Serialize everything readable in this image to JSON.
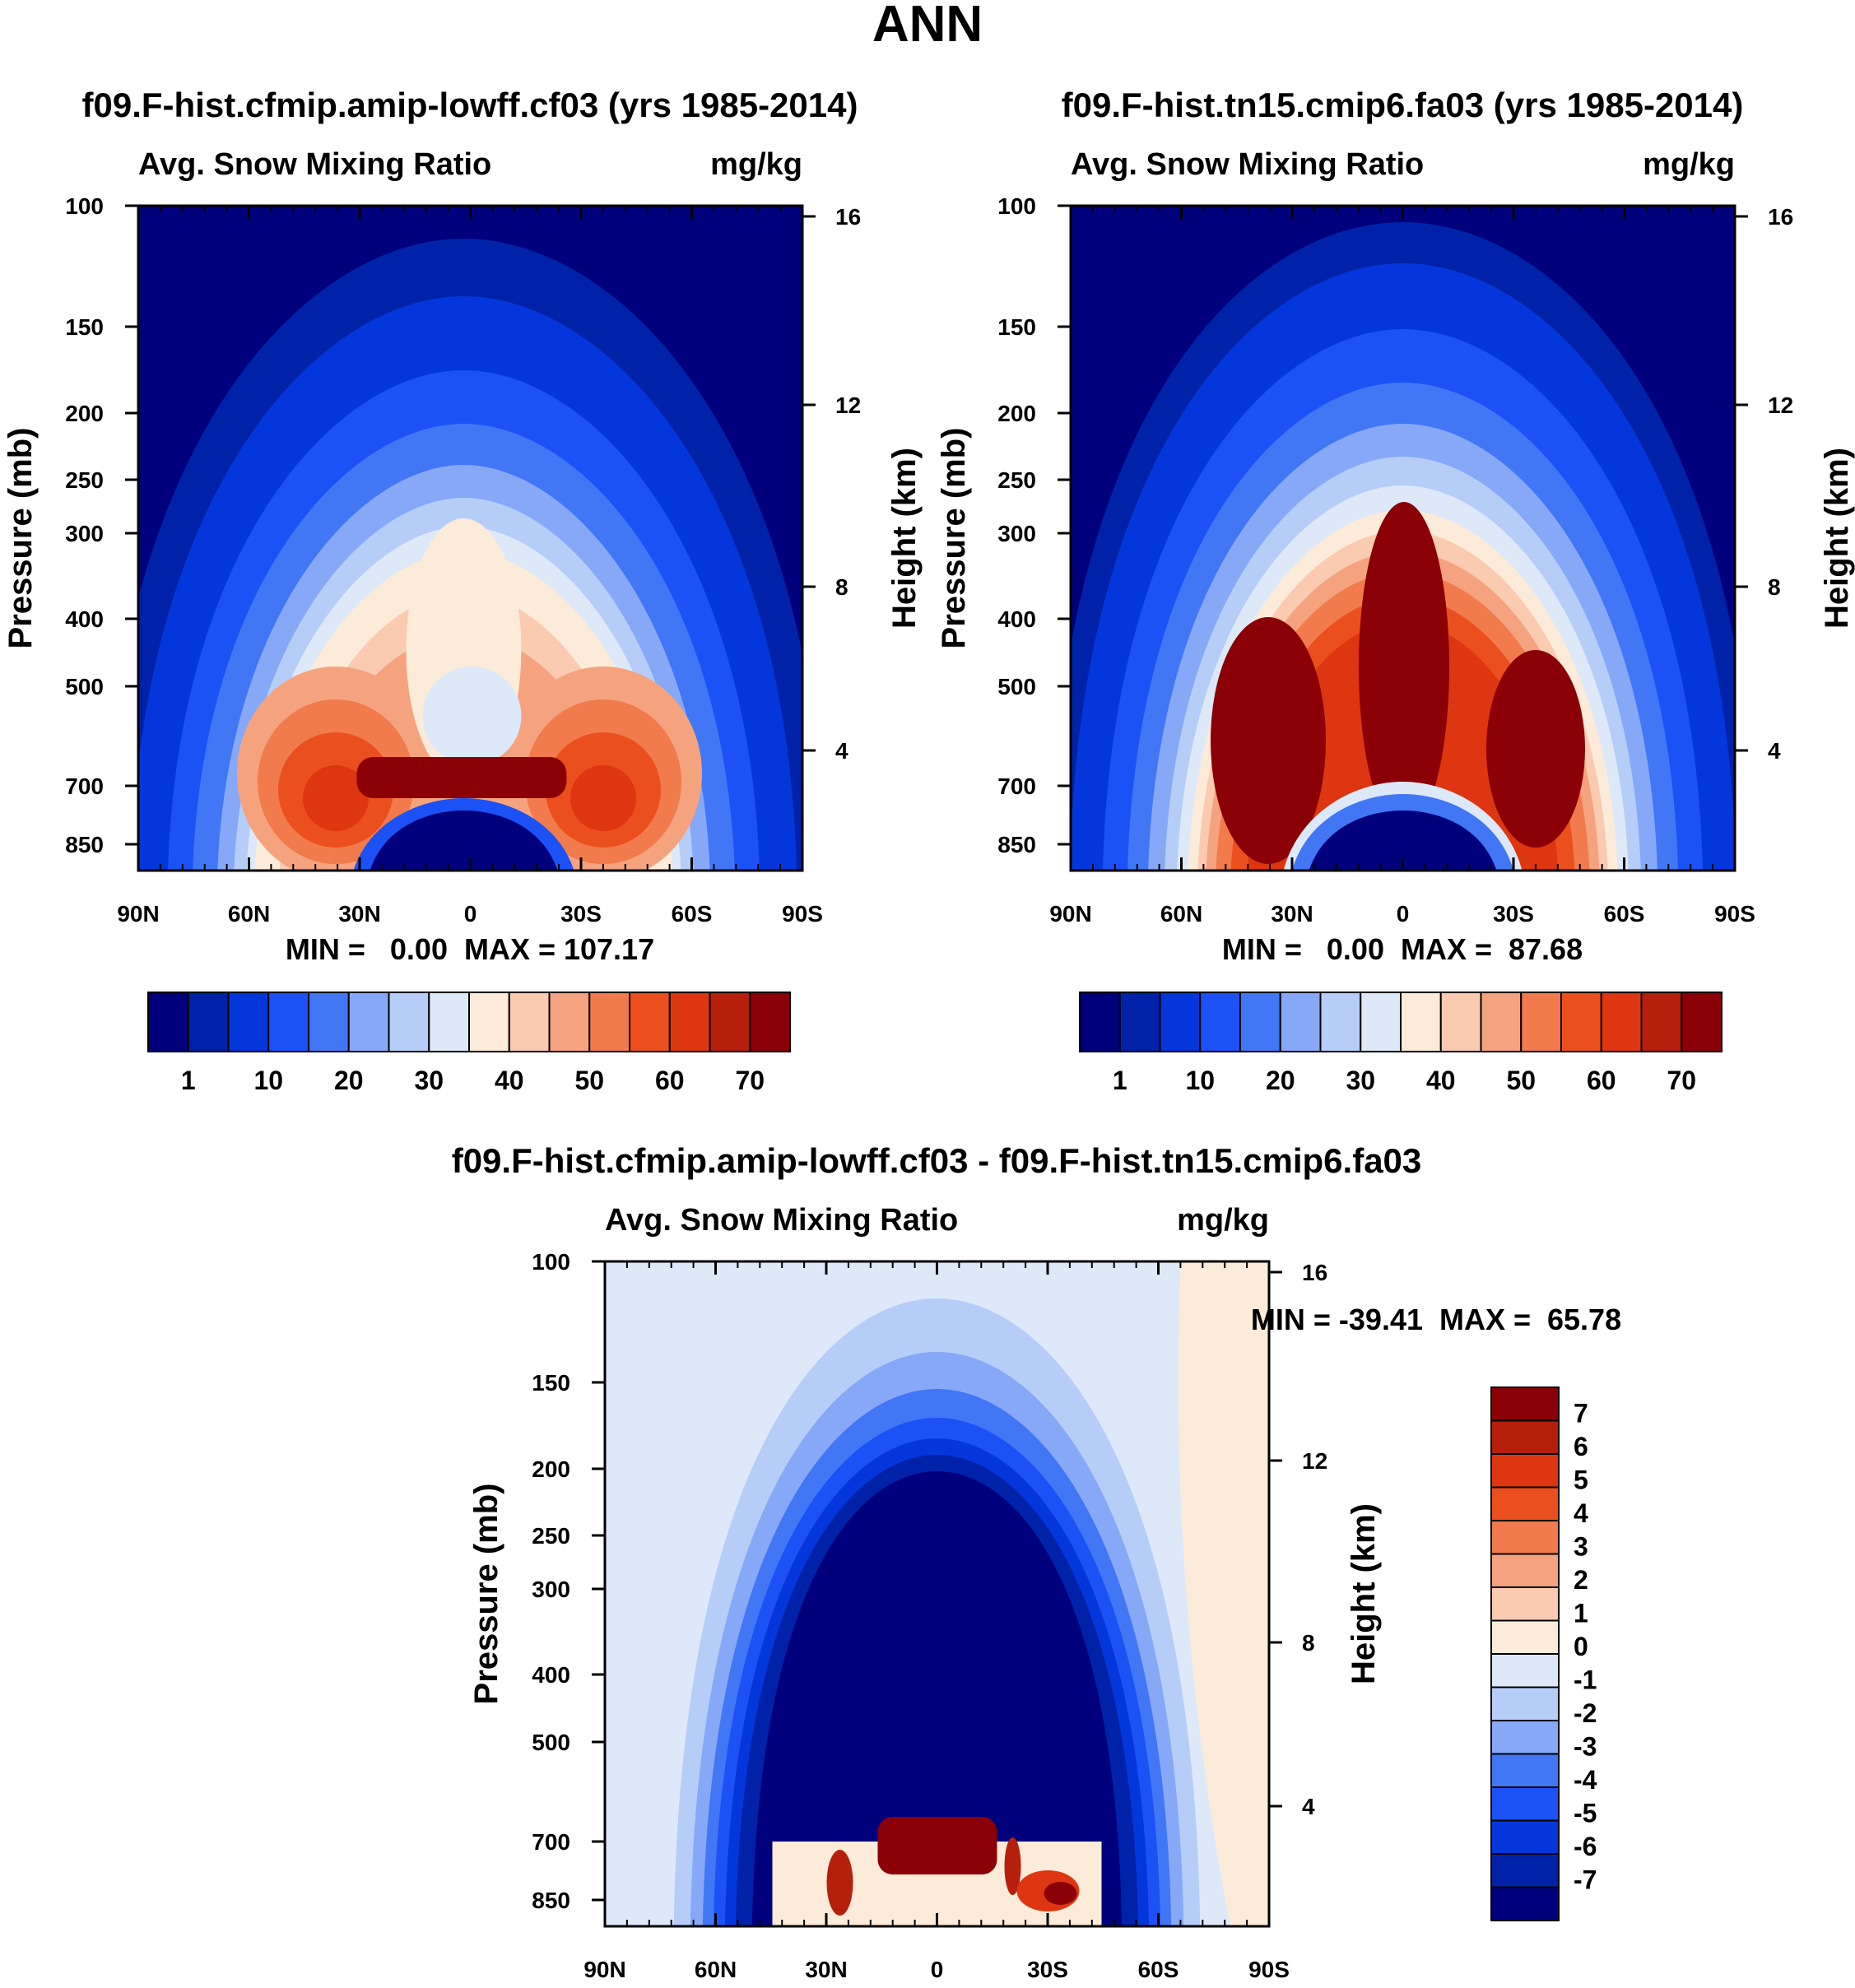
{
  "page": {
    "title": "ANN"
  },
  "colors": {
    "main_scale": [
      "#00007d",
      "#0022a8",
      "#0437db",
      "#1c52f5",
      "#4177f5",
      "#86a8f7",
      "#b6cdf8",
      "#dde9f9",
      "#fdebd9",
      "#facab1",
      "#f5a37f",
      "#f17b4c",
      "#ec4f1e",
      "#de3610",
      "#b51f0b",
      "#8a0006"
    ],
    "diff_scale": [
      "#00007d",
      "#0022a8",
      "#0437db",
      "#1c52f5",
      "#4177f5",
      "#86a8f7",
      "#b6cdf8",
      "#dde9f9",
      "#fdebd9",
      "#facab1",
      "#f5a37f",
      "#f17b4c",
      "#ec4f1e",
      "#de3610",
      "#b51f0b",
      "#8a0006"
    ]
  },
  "chart_data": [
    {
      "type": "contour",
      "title": "f09.F-hist.cfmip.amip-lowff.cf03 (yrs 1985-2014)",
      "left_label": "Avg. Snow Mixing Ratio",
      "units": "mg/kg",
      "ylabel": "Pressure (mb)",
      "ylabel_right": "Height (km)",
      "x_ticks": [
        "90N",
        "60N",
        "30N",
        "0",
        "30S",
        "60S",
        "90S"
      ],
      "y_ticks": [
        "100",
        "150",
        "200",
        "250",
        "300",
        "400",
        "500",
        "700",
        "850"
      ],
      "y_ticks_right": [
        "16",
        "12",
        "8",
        "4"
      ],
      "stats": "MIN =   0.00  MAX = 107.17",
      "colorbar_labels": [
        "1",
        "10",
        "20",
        "30",
        "40",
        "50",
        "60",
        "70"
      ],
      "peak_value": 107.17
    },
    {
      "type": "contour",
      "title": "f09.F-hist.tn15.cmip6.fa03 (yrs 1985-2014)",
      "left_label": "Avg. Snow Mixing Ratio",
      "units": "mg/kg",
      "ylabel": "Pressure (mb)",
      "ylabel_right": "Height (km)",
      "x_ticks": [
        "90N",
        "60N",
        "30N",
        "0",
        "30S",
        "60S",
        "90S"
      ],
      "y_ticks": [
        "100",
        "150",
        "200",
        "250",
        "300",
        "400",
        "500",
        "700",
        "850"
      ],
      "y_ticks_right": [
        "16",
        "12",
        "8",
        "4"
      ],
      "stats": "MIN =   0.00  MAX =  87.68",
      "colorbar_labels": [
        "1",
        "10",
        "20",
        "30",
        "40",
        "50",
        "60",
        "70"
      ],
      "peak_value": 87.68
    },
    {
      "type": "contour",
      "title": "f09.F-hist.cfmip.amip-lowff.cf03 - f09.F-hist.tn15.cmip6.fa03",
      "left_label": "Avg. Snow Mixing Ratio",
      "units": "mg/kg",
      "ylabel": "Pressure (mb)",
      "ylabel_right": "Height (km)",
      "x_ticks": [
        "90N",
        "60N",
        "30N",
        "0",
        "30S",
        "60S",
        "90S"
      ],
      "y_ticks": [
        "100",
        "150",
        "200",
        "250",
        "300",
        "400",
        "500",
        "700",
        "850"
      ],
      "y_ticks_right": [
        "16",
        "12",
        "8",
        "4"
      ],
      "stats": "MIN = -39.41  MAX =  65.78",
      "colorbar_labels": [
        "7",
        "6",
        "5",
        "4",
        "3",
        "2",
        "1",
        "0",
        "-1",
        "-2",
        "-3",
        "-4",
        "-5",
        "-6",
        "-7"
      ],
      "min_value": -39.41,
      "max_value": 65.78
    }
  ]
}
